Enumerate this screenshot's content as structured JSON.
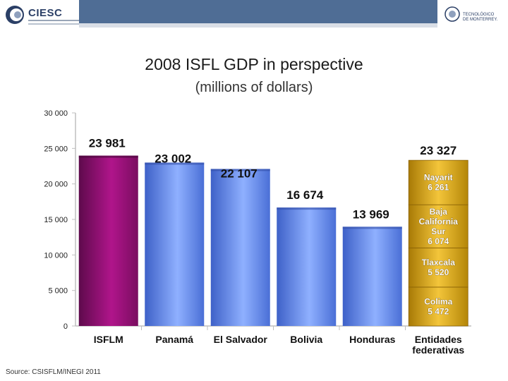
{
  "header": {
    "left_logo_text": "CIESC",
    "right_logo_line1": "TECNOLÓGICO",
    "right_logo_line2": "DE MONTERREY."
  },
  "chart_data": {
    "type": "bar",
    "title": "2008 ISFL GDP in perspective",
    "subtitle": "(millions of dollars)",
    "xlabel": "",
    "ylabel": "",
    "ylim": [
      0,
      30000
    ],
    "yticks": [
      0,
      5000,
      10000,
      15000,
      20000,
      25000,
      30000
    ],
    "ytick_labels": [
      "0",
      "5 000",
      "10 000",
      "15 000",
      "20 000",
      "25 000",
      "30 000"
    ],
    "grid": false,
    "categories": [
      "ISFLM",
      "Panamá",
      "El Salvador",
      "Bolivia",
      "Honduras",
      "Entidades federativas"
    ],
    "values": [
      23981,
      23002,
      22107,
      16674,
      13969,
      23327
    ],
    "value_labels": [
      "23 981",
      "23 002",
      "22 107",
      "16 674",
      "13 969",
      "23 327"
    ],
    "stack_last": [
      {
        "name": "Colima",
        "value": 5472,
        "label": "5 472"
      },
      {
        "name": "Tlaxcala",
        "value": 5520,
        "label": "5 520"
      },
      {
        "name": "Baja California Sur",
        "value": 6074,
        "label": "6 074"
      },
      {
        "name": "Nayarit",
        "value": 6261,
        "label": "6 261"
      }
    ],
    "colors": {
      "isflm": "#a6127f",
      "blue": "#6d8fe8",
      "gold": "#e6b422"
    }
  },
  "source": "Source: CSISFLM/INEGI 2011"
}
